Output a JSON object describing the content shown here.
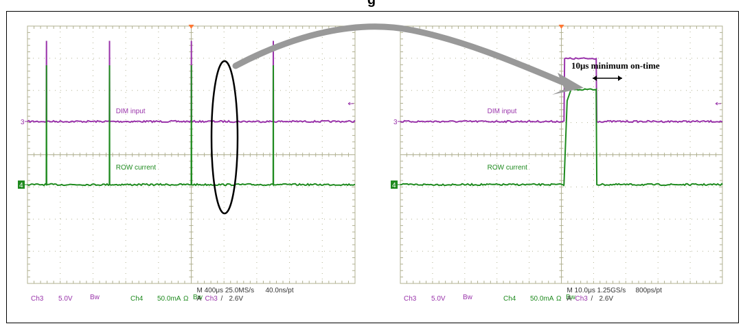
{
  "page": {
    "title": "g"
  },
  "annotation": {
    "text": "10μs minimum on-time"
  },
  "colors": {
    "ch3": "#9933aa",
    "ch4": "#1e8a1e",
    "grid": "#b0b090",
    "arrow": "#999999",
    "trigger": "#ff7733",
    "ellipse": "#000000"
  },
  "chart_data": [
    {
      "type": "line",
      "title": "",
      "grid": true,
      "divisions": {
        "x": 10,
        "y": 8
      },
      "x_scale": {
        "time_per_div": "400μs",
        "total_time_us": 4000
      },
      "series": [
        {
          "name": "DIM input",
          "channel": "3",
          "volts_per_div": "5.0V",
          "baseline": 0,
          "pulse_height": 2.5,
          "x": [
            0,
            230,
            232,
            234,
            1000,
            1002,
            1004,
            2000,
            2002,
            2004,
            3000,
            3002,
            3004,
            4000
          ],
          "y": [
            0,
            0,
            2.5,
            0,
            0,
            2.5,
            0,
            0,
            2.5,
            0,
            0,
            2.5,
            0,
            0
          ]
        },
        {
          "name": "ROW current",
          "channel": "4",
          "amps_per_div": "50.0mA",
          "baseline": 0,
          "pulse_height": 3.7,
          "x": [
            0,
            230,
            232,
            234,
            1000,
            1002,
            1004,
            2000,
            2002,
            2004,
            3000,
            3002,
            3004,
            4000
          ],
          "y": [
            0,
            0,
            3.7,
            0,
            0,
            3.7,
            0,
            0,
            3.7,
            0,
            0,
            3.7,
            0,
            0
          ]
        }
      ],
      "readouts": {
        "ch3": {
          "label": "Ch3",
          "scale": "5.0V",
          "bw": "Bw"
        },
        "ch4": {
          "label": "Ch4",
          "scale": "50.0mA",
          "ohm": "Ω",
          "bw": "Bw"
        },
        "timebase": "M 400μs 25.0MS/s",
        "sample": "40.0ns/pt",
        "trigger_a": "A",
        "trigger_ch": "Ch3",
        "trigger_slope": "/",
        "trigger_level": "2.6V"
      },
      "markers": {
        "ch3": "3",
        "ch4": "4"
      }
    },
    {
      "type": "line",
      "title": "",
      "grid": true,
      "divisions": {
        "x": 10,
        "y": 8
      },
      "x_scale": {
        "time_per_div": "10.0μs",
        "total_time_us": 100
      },
      "series": [
        {
          "name": "DIM input",
          "channel": "3",
          "volts_per_div": "5.0V",
          "baseline": 0,
          "pulse_height": 1.95,
          "x": [
            0,
            50.8,
            51.0,
            60.8,
            61.0,
            100
          ],
          "y": [
            0,
            0,
            1.95,
            1.95,
            0,
            0
          ]
        },
        {
          "name": "ROW current",
          "channel": "4",
          "amps_per_div": "50.0mA",
          "baseline": 0,
          "pulse_height": 2.95,
          "x": [
            0,
            50.8,
            51.8,
            53.0,
            60.8,
            61.0,
            100
          ],
          "y": [
            0,
            0,
            2.6,
            2.95,
            2.95,
            0,
            0
          ]
        }
      ],
      "readouts": {
        "ch3": {
          "label": "Ch3",
          "scale": "5.0V",
          "bw": "Bw"
        },
        "ch4": {
          "label": "Ch4",
          "scale": "50.0mA",
          "ohm": "Ω",
          "bw": "Bw"
        },
        "timebase": "M 10.0μs 1.25GS/s",
        "sample": "800ps/pt",
        "trigger_a": "A",
        "trigger_ch": "Ch3",
        "trigger_slope": "/",
        "trigger_level": "2.6V"
      },
      "markers": {
        "ch3": "3",
        "ch4": "4"
      }
    }
  ]
}
